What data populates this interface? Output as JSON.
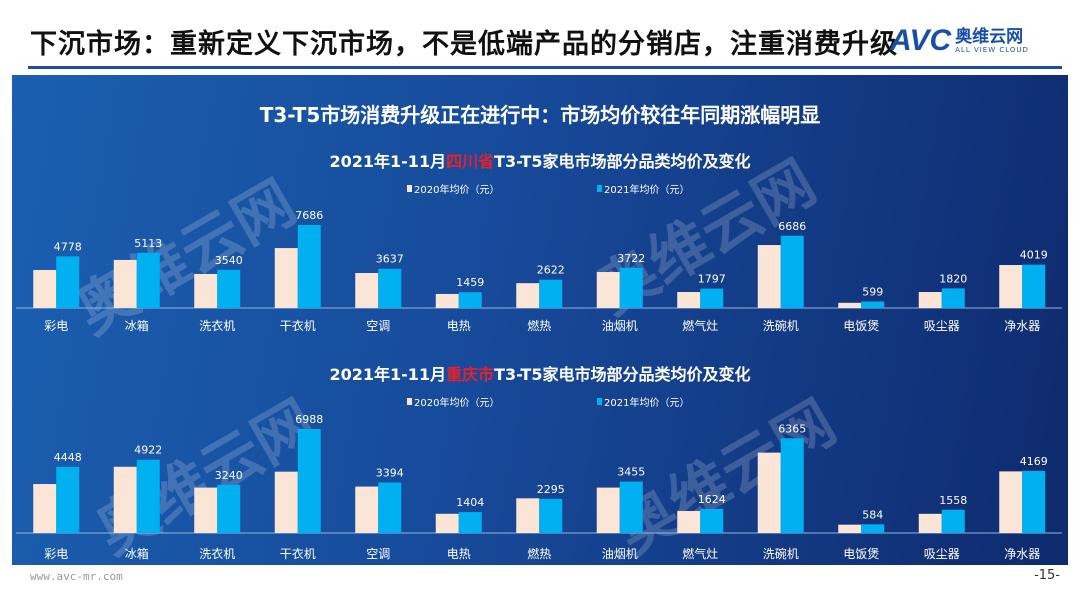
{
  "header": {
    "title": "下沉市场：重新定义下沉市场，不是低端产品的分销店，注重消费升级",
    "logo_text": "AVC",
    "logo_cn": "奥维云网",
    "logo_en": "ALL VIEW CLOUD"
  },
  "panel": {
    "main_title": "T3-T5市场消费升级正在进行中：市场均价较往年同期涨幅明显",
    "watermark_cn": "奥维云网",
    "watermark_en": "ALL VIEW CLOUD"
  },
  "colors": {
    "series_2020": "#fbe5d6",
    "series_2021": "#00b0f0",
    "highlight": "#e8202a"
  },
  "chart_data": [
    {
      "type": "bar",
      "title_prefix": "2021年1-11月",
      "title_region": "四川省",
      "title_suffix": "T3-T5家电市场部分品类均价及变化",
      "categories": [
        "彩电",
        "冰箱",
        "洗衣机",
        "干衣机",
        "空调",
        "电热",
        "燃热",
        "油烟机",
        "燃气灶",
        "洗碗机",
        "电饭煲",
        "吸尘器",
        "净水器"
      ],
      "series": [
        {
          "name": "2020年均价（元）",
          "values": [
            3520,
            4450,
            3150,
            5550,
            3240,
            1300,
            2300,
            3330,
            1480,
            5830,
            480,
            1480,
            3980
          ]
        },
        {
          "name": "2021年均价（元）",
          "values": [
            4778,
            5113,
            3540,
            7686,
            3637,
            1459,
            2622,
            3722,
            1797,
            6686,
            599,
            1820,
            4019
          ]
        }
      ],
      "data_labels": [
        "4778",
        "5113",
        "3540",
        "7686",
        "3637",
        "1459",
        "2622",
        "3722",
        "1797",
        "6686",
        "599",
        "1820",
        "4019"
      ],
      "legend": "top-center",
      "grid": false
    },
    {
      "type": "bar",
      "title_prefix": "2021年1-11月",
      "title_region": "重庆市",
      "title_suffix": "T3-T5家电市场部分品类均价及变化",
      "categories": [
        "彩电",
        "冰箱",
        "洗衣机",
        "干衣机",
        "空调",
        "电热",
        "燃热",
        "油烟机",
        "燃气灶",
        "洗碗机",
        "电饭煲",
        "吸尘器",
        "净水器"
      ],
      "series": [
        {
          "name": "2020年均价（元）",
          "values": [
            3290,
            4450,
            3050,
            4120,
            3120,
            1290,
            2330,
            3050,
            1480,
            5400,
            560,
            1290,
            4140
          ]
        },
        {
          "name": "2021年均价（元）",
          "values": [
            4448,
            4922,
            3240,
            6988,
            3394,
            1404,
            2295,
            3455,
            1624,
            6365,
            584,
            1558,
            4169
          ]
        }
      ],
      "data_labels": [
        "4448",
        "4922",
        "3240",
        "6988",
        "3394",
        "1404",
        "2295",
        "3455",
        "1624",
        "6365",
        "584",
        "1558",
        "4169"
      ],
      "legend": "top-center",
      "grid": false
    }
  ],
  "footer": {
    "url": "www.avc-mr.com",
    "page": "-15-"
  }
}
